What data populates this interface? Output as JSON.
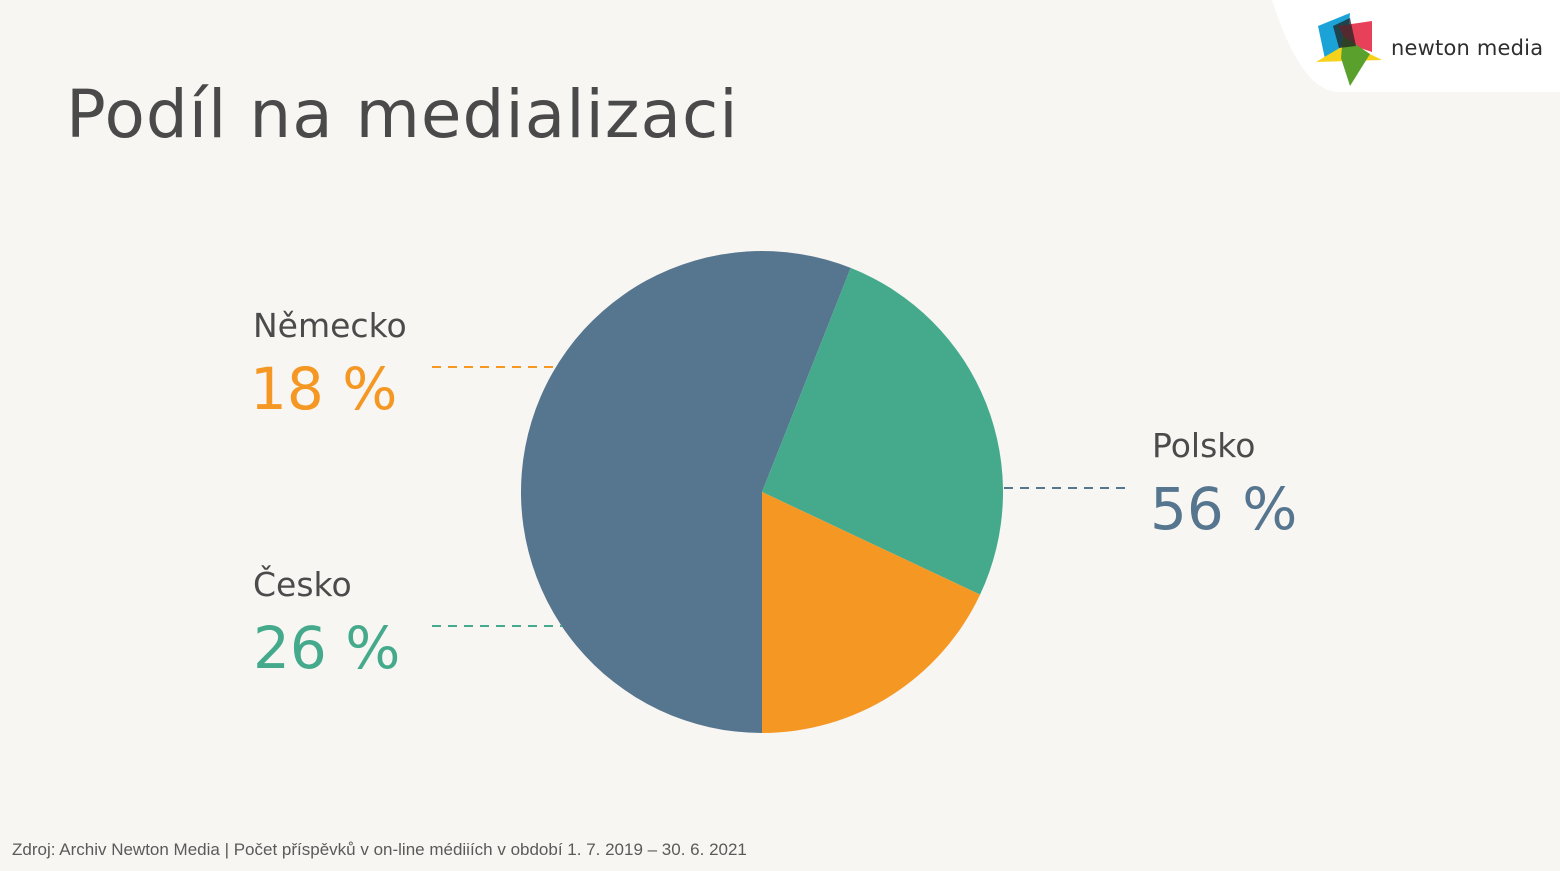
{
  "header": {
    "title": "Podíl na medializaci",
    "brand_name": "newton media",
    "logo_icon": "newton-media-logo-icon"
  },
  "chart_data": {
    "type": "pie",
    "slices": [
      {
        "label": "Polsko",
        "value": 56,
        "value_label": "56 %",
        "color": "#56758e"
      },
      {
        "label": "Česko",
        "value": 26,
        "value_label": "26 %",
        "color": "#45aa8c"
      },
      {
        "label": "Německo",
        "value": 18,
        "value_label": "18 %",
        "color": "#f59723"
      }
    ]
  },
  "footer": {
    "source": "Zdroj: Archiv Newton Media | Počet příspěvků v on-line médiiích v období 1. 7. 2019 – 30. 6. 2021"
  }
}
